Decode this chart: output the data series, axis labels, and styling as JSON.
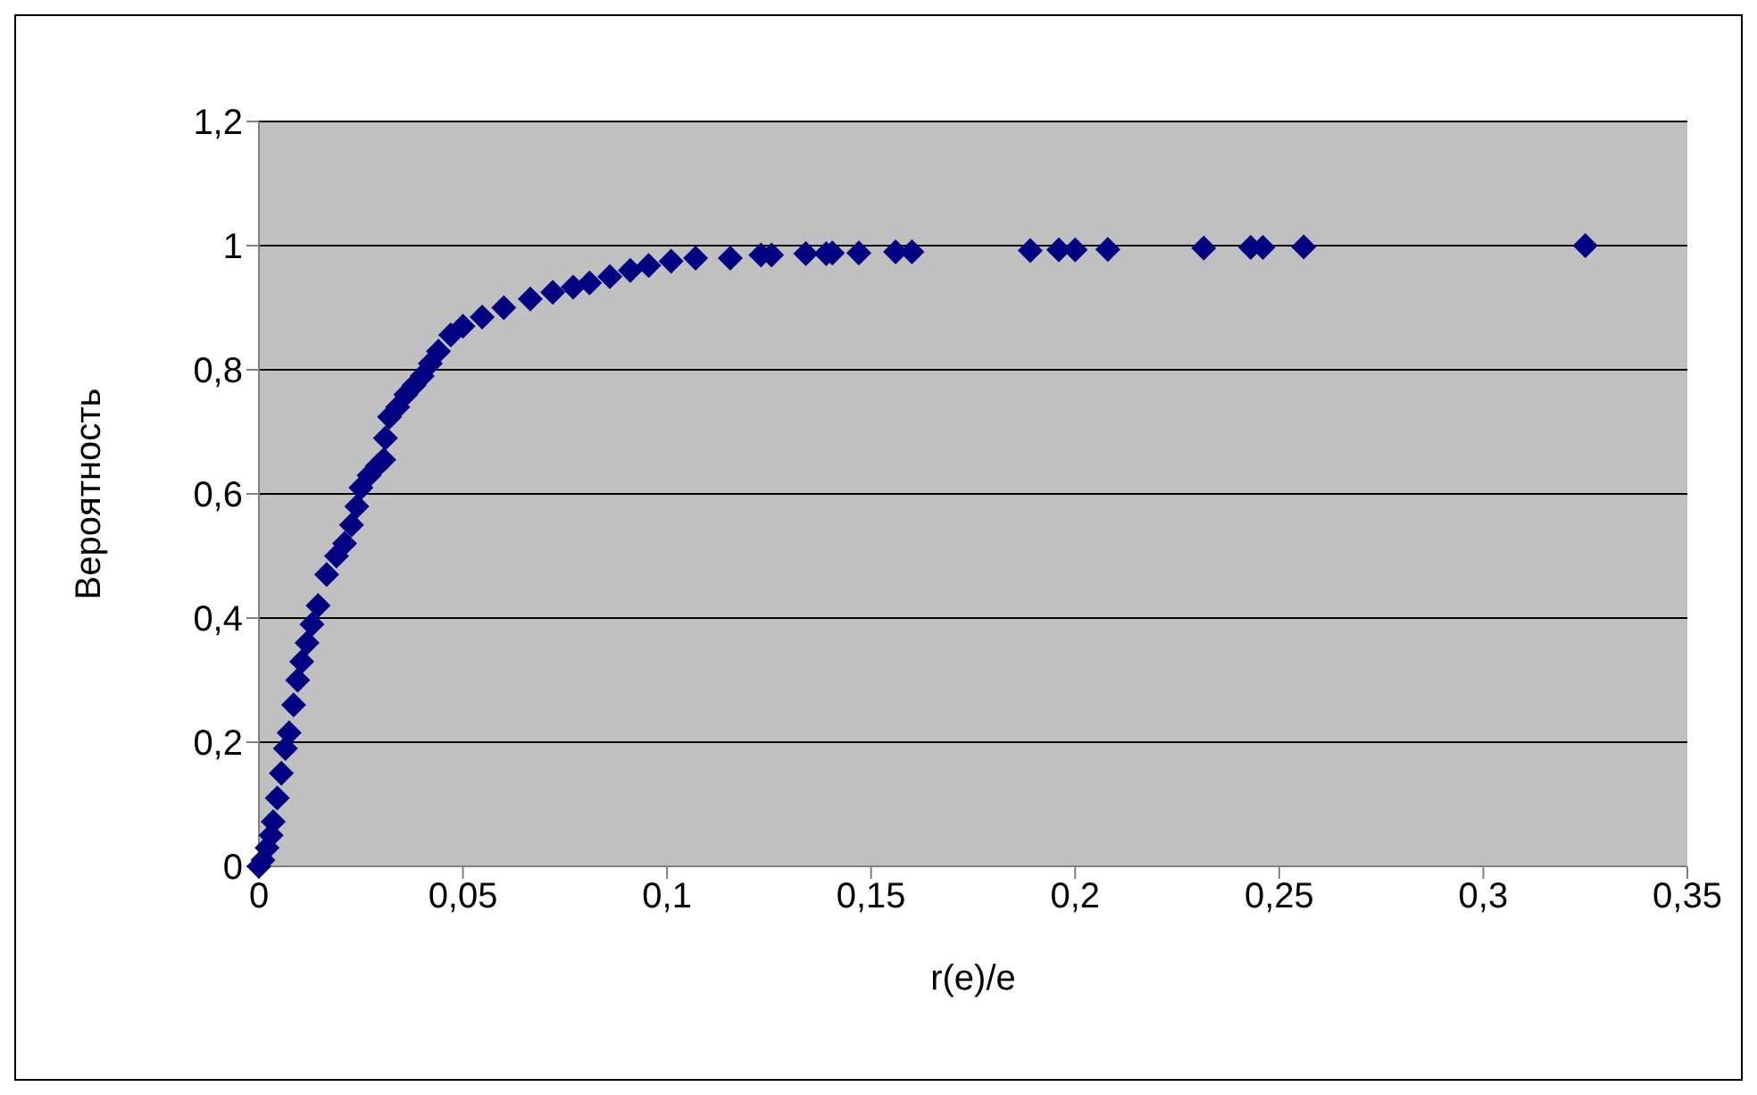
{
  "chart_data": {
    "type": "scatter",
    "xlabel": "r(e)/e",
    "ylabel": "Вероятность",
    "marker": "diamond",
    "grid": "y",
    "legend": false,
    "xlim": [
      0,
      0.35
    ],
    "xticks": [
      {
        "value": 0,
        "label": "0"
      },
      {
        "value": 0.05,
        "label": "0,05"
      },
      {
        "value": 0.1,
        "label": "0,1"
      },
      {
        "value": 0.15,
        "label": "0,15"
      },
      {
        "value": 0.2,
        "label": "0,2"
      },
      {
        "value": 0.25,
        "label": "0,25"
      },
      {
        "value": 0.3,
        "label": "0,3"
      },
      {
        "value": 0.35,
        "label": "0,35"
      }
    ],
    "ylim": [
      0,
      1.2
    ],
    "yticks": [
      {
        "value": 0,
        "label": "0"
      },
      {
        "value": 0.2,
        "label": "0,2"
      },
      {
        "value": 0.4,
        "label": "0,4"
      },
      {
        "value": 0.6,
        "label": "0,6"
      },
      {
        "value": 0.8,
        "label": "0,8"
      },
      {
        "value": 1,
        "label": "1"
      },
      {
        "value": 1.2,
        "label": "1,2"
      }
    ],
    "series": [
      {
        "color": "#000080",
        "x": [
          0,
          0.001,
          0.002,
          0.003,
          0.0035,
          0.0045,
          0.0055,
          0.0065,
          0.0074,
          0.0085,
          0.0095,
          0.0105,
          0.0118,
          0.013,
          0.0145,
          0.0166,
          0.019,
          0.021,
          0.0227,
          0.024,
          0.025,
          0.027,
          0.029,
          0.0306,
          0.031,
          0.032,
          0.034,
          0.036,
          0.038,
          0.04,
          0.042,
          0.044,
          0.047,
          0.05,
          0.0547,
          0.06,
          0.0665,
          0.072,
          0.077,
          0.081,
          0.086,
          0.091,
          0.0955,
          0.101,
          0.107,
          0.1155,
          0.123,
          0.1256,
          0.134,
          0.139,
          0.1405,
          0.147,
          0.156,
          0.16,
          0.189,
          0.196,
          0.2,
          0.208,
          0.2315,
          0.243,
          0.246,
          0.256,
          0.325
        ],
        "values": [
          0,
          0.01,
          0.03,
          0.05,
          0.072,
          0.11,
          0.15,
          0.19,
          0.215,
          0.26,
          0.3,
          0.33,
          0.36,
          0.39,
          0.42,
          0.47,
          0.5,
          0.52,
          0.55,
          0.58,
          0.61,
          0.63,
          0.645,
          0.655,
          0.69,
          0.724,
          0.74,
          0.76,
          0.775,
          0.79,
          0.81,
          0.83,
          0.856,
          0.87,
          0.885,
          0.9,
          0.914,
          0.925,
          0.933,
          0.94,
          0.95,
          0.96,
          0.968,
          0.975,
          0.98,
          0.98,
          0.985,
          0.985,
          0.987,
          0.987,
          0.988,
          0.988,
          0.99,
          0.99,
          0.992,
          0.993,
          0.993,
          0.994,
          0.996,
          0.997,
          0.997,
          0.998,
          1
        ]
      }
    ]
  }
}
